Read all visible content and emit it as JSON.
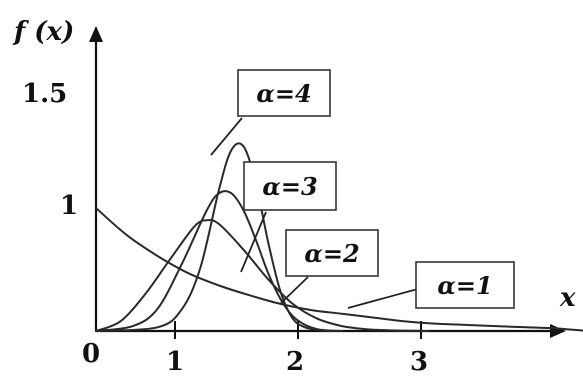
{
  "chart_data": {
    "type": "line",
    "ylabel": "f (x)",
    "xlabel": "x",
    "x_ticks": [
      "1",
      "2",
      "3"
    ],
    "y_ticks": [
      "1",
      "1.5"
    ],
    "origin_label": "0",
    "grid": false,
    "series": [
      {
        "name": "α=1",
        "x": [
          0,
          0.25,
          0.5,
          0.75,
          1.0,
          1.25,
          1.5,
          1.75,
          2.0,
          2.25,
          2.5,
          2.75,
          3.0,
          3.25,
          3.5,
          3.75,
          4.0
        ],
        "y": [
          1.0,
          0.78,
          0.61,
          0.47,
          0.37,
          0.29,
          0.22,
          0.17,
          0.14,
          0.11,
          0.08,
          0.06,
          0.05,
          0.04,
          0.03,
          0.02,
          0.0
        ]
      },
      {
        "name": "α=2",
        "x": [
          0,
          0.2,
          0.4,
          0.6,
          0.8,
          0.9,
          1.0,
          1.2,
          1.4,
          1.6,
          1.8,
          2.0,
          2.2,
          2.4,
          2.7
        ],
        "y": [
          0,
          0.08,
          0.3,
          0.58,
          0.85,
          0.9,
          0.87,
          0.66,
          0.42,
          0.22,
          0.1,
          0.04,
          0.015,
          0.005,
          0.0
        ]
      },
      {
        "name": "α=3",
        "x": [
          0,
          0.3,
          0.5,
          0.7,
          0.9,
          1.0,
          1.1,
          1.2,
          1.3,
          1.4,
          1.5,
          1.6,
          1.7,
          1.8,
          1.9,
          2.0
        ],
        "y": [
          0,
          0.04,
          0.18,
          0.55,
          0.98,
          1.12,
          1.12,
          0.98,
          0.74,
          0.47,
          0.26,
          0.12,
          0.05,
          0.015,
          0.004,
          0.0
        ]
      },
      {
        "name": "α=4",
        "x": [
          0,
          0.5,
          0.7,
          0.85,
          1.0,
          1.1,
          1.2,
          1.3,
          1.4,
          1.5,
          1.6,
          1.7,
          1.8,
          1.9
        ],
        "y": [
          0,
          0.03,
          0.18,
          0.52,
          1.15,
          1.47,
          1.5,
          1.2,
          0.72,
          0.32,
          0.1,
          0.03,
          0.01,
          0.0
        ]
      }
    ]
  }
}
